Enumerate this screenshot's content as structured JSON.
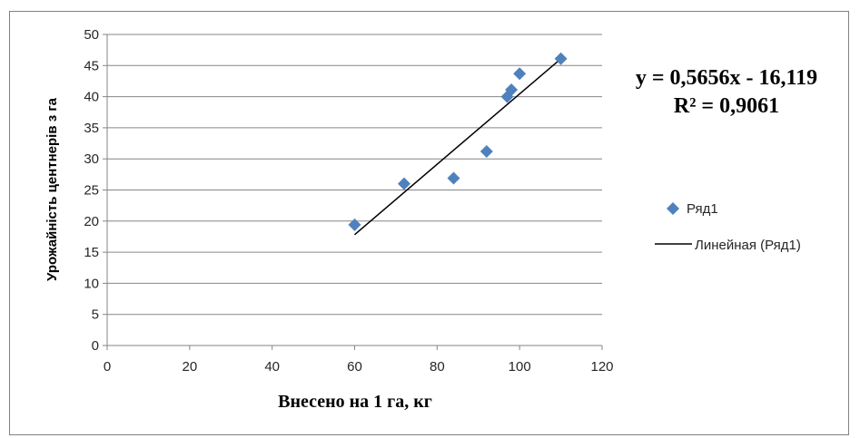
{
  "chart_data": {
    "type": "scatter",
    "xlabel": "Внесено на 1 га, кг",
    "ylabel": "Урожайність центнерів з га",
    "xlim": [
      0,
      120
    ],
    "ylim": [
      0,
      50
    ],
    "x_ticks": [
      "0",
      "20",
      "40",
      "60",
      "80",
      "100",
      "120"
    ],
    "y_ticks": [
      "0",
      "5",
      "10",
      "15",
      "20",
      "25",
      "30",
      "35",
      "40",
      "45",
      "50"
    ],
    "grid": "horizontal",
    "legend_position": "right",
    "series": [
      {
        "name": "Ряд1",
        "marker": "diamond",
        "color": "#4f81bd",
        "points": [
          {
            "x": 60,
            "y": 19.4
          },
          {
            "x": 72,
            "y": 26.0
          },
          {
            "x": 84,
            "y": 26.9
          },
          {
            "x": 92,
            "y": 31.2
          },
          {
            "x": 97,
            "y": 40.0
          },
          {
            "x": 98,
            "y": 41.1
          },
          {
            "x": 100,
            "y": 43.7
          },
          {
            "x": 110,
            "y": 46.1
          }
        ]
      }
    ],
    "trendline": {
      "name": "Линейная (Ряд1)",
      "type": "linear",
      "slope": 0.5656,
      "intercept": -16.119,
      "x_range": [
        60,
        110
      ],
      "color": "#000000",
      "equation_text": "y = 0,5656x - 16,119",
      "r2_text": "R² = 0,9061"
    }
  }
}
